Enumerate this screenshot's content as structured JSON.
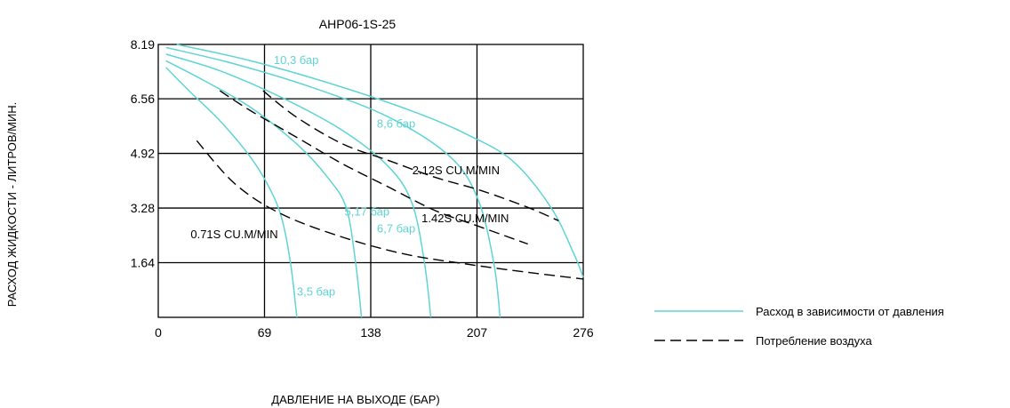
{
  "chart_data": {
    "type": "line",
    "title": "AHP06-1S-25",
    "xlabel": "ДАВЛЕНИЕ НА ВЫХОДЕ (БАР)",
    "ylabel": "РАСХОД ЖИДКОСТИ - ЛИТРОВ/МИН.",
    "xlim": [
      0,
      276
    ],
    "ylim": [
      0,
      8.19
    ],
    "x_ticks": [
      "0",
      "69",
      "138",
      "207",
      "276"
    ],
    "y_ticks": [
      "1.64",
      "3.28",
      "4.92",
      "6.56",
      "8.19"
    ],
    "grid": true,
    "legend_position": "right",
    "colors": {
      "flow": "#5fd4d4",
      "air": "#000000",
      "grid": "#000000"
    },
    "legend": [
      {
        "label": "Расход в зависимости от давления",
        "style": "solid",
        "color": "#5fd4d4"
      },
      {
        "label": "Потребление воздуха",
        "style": "dashed",
        "color": "#000000"
      }
    ],
    "series": [
      {
        "name": "3,5 бар",
        "style": "solid",
        "x": [
          5,
          20,
          40,
          60,
          72,
          80,
          86,
          90
        ],
        "y": [
          7.5,
          6.8,
          5.9,
          4.8,
          3.9,
          3.0,
          1.6,
          0
        ]
      },
      {
        "name": "5,17 бар",
        "style": "solid",
        "x": [
          5,
          30,
          60,
          90,
          110,
          122,
          128,
          132
        ],
        "y": [
          7.7,
          7.1,
          6.3,
          5.2,
          4.2,
          3.3,
          1.7,
          0
        ]
      },
      {
        "name": "6,7 бар",
        "style": "solid",
        "x": [
          5,
          40,
          80,
          120,
          150,
          165,
          173,
          177
        ],
        "y": [
          7.9,
          7.4,
          6.6,
          5.6,
          4.5,
          3.4,
          1.6,
          0
        ]
      },
      {
        "name": "8,6 бар",
        "style": "solid",
        "x": [
          5,
          50,
          100,
          150,
          190,
          208,
          218,
          222
        ],
        "y": [
          8.1,
          7.6,
          6.9,
          6.0,
          4.8,
          3.5,
          1.6,
          0
        ]
      },
      {
        "name": "10,3 бар",
        "style": "solid",
        "x": [
          12,
          60,
          120,
          170,
          200,
          230,
          255,
          270,
          276
        ],
        "y": [
          8.19,
          7.7,
          6.9,
          6.1,
          5.5,
          4.7,
          3.3,
          1.9,
          1.2
        ]
      },
      {
        "name": "0.71S CU.M/MIN",
        "style": "dashed",
        "x": [
          25,
          50,
          80,
          120,
          160,
          200,
          240,
          276
        ],
        "y": [
          5.3,
          4.0,
          3.1,
          2.4,
          1.9,
          1.6,
          1.35,
          1.15
        ]
      },
      {
        "name": "1.42S CU.M/MIN",
        "style": "dashed",
        "x": [
          40,
          60,
          90,
          120,
          150,
          180,
          210,
          240
        ],
        "y": [
          6.8,
          6.2,
          5.4,
          4.6,
          3.9,
          3.2,
          2.7,
          2.2
        ]
      },
      {
        "name": "2.12S CU.M/MIN",
        "style": "dashed",
        "x": [
          68,
          90,
          120,
          150,
          180,
          210,
          240,
          260
        ],
        "y": [
          6.8,
          6.0,
          5.2,
          4.7,
          4.2,
          3.8,
          3.3,
          2.9
        ]
      }
    ],
    "annotations": [
      {
        "text": "10,3 бар",
        "x": 75,
        "y": 7.6,
        "color": "#5fd4d4"
      },
      {
        "text": "8,6 бар",
        "x": 142,
        "y": 5.7,
        "color": "#5fd4d4"
      },
      {
        "text": "5,17 бар",
        "x": 121,
        "y": 3.05,
        "color": "#5fd4d4"
      },
      {
        "text": "6,7 бар",
        "x": 142,
        "y": 2.55,
        "color": "#5fd4d4"
      },
      {
        "text": "3,5 бар",
        "x": 90,
        "y": 0.65,
        "color": "#5fd4d4"
      },
      {
        "text": "2.12S CU.M/MIN",
        "x": 165,
        "y": 4.3,
        "color": "#000000"
      },
      {
        "text": "1.42S CU.M/MIN",
        "x": 171,
        "y": 2.85,
        "color": "#000000"
      },
      {
        "text": "0.71S CU.M/MIN",
        "x": 21,
        "y": 2.38,
        "color": "#000000"
      }
    ]
  }
}
